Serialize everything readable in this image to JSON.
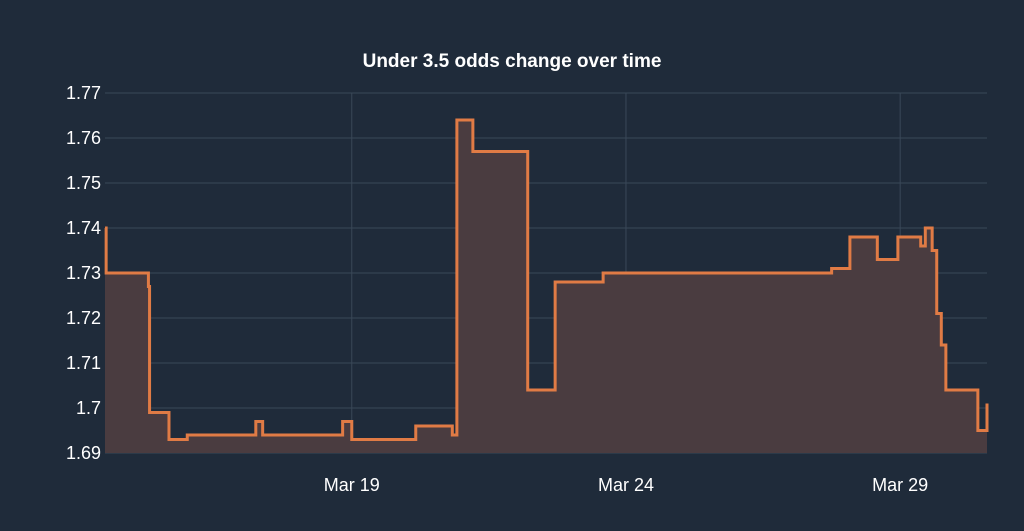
{
  "chart_data": {
    "type": "area",
    "title": "Under  3.5 odds change over time",
    "xlabel": "",
    "ylabel": "",
    "x_range": [
      "2024-03-14T12:00",
      "2024-03-30T14:00"
    ],
    "ylim": [
      1.69,
      1.77
    ],
    "yticks": [
      1.69,
      1.7,
      1.71,
      1.72,
      1.73,
      1.74,
      1.75,
      1.76,
      1.77
    ],
    "ytick_labels": [
      "1.69",
      "1.7",
      "1.71",
      "1.72",
      "1.73",
      "1.74",
      "1.75",
      "1.76",
      "1.77"
    ],
    "xticks": [
      {
        "date": "2024-03-19T00:00",
        "label": "Mar 19"
      },
      {
        "date": "2024-03-24T00:00",
        "label": "Mar 24"
      },
      {
        "date": "2024-03-29T00:00",
        "label": "Mar 29"
      }
    ],
    "grid": true,
    "step": true,
    "colors": {
      "line": "#e07b45",
      "fill": "#4a3c40",
      "background": "#1f2b3a",
      "grid": "#3a4858"
    },
    "x": [
      "2024-03-14T12:00",
      "2024-03-14T12:30",
      "2024-03-15T07:00",
      "2024-03-15T07:30",
      "2024-03-15T08:00",
      "2024-03-15T16:00",
      "2024-03-16T00:00",
      "2024-03-17T06:00",
      "2024-03-17T09:00",
      "2024-03-18T20:00",
      "2024-03-19T00:00",
      "2024-03-20T04:00",
      "2024-03-20T20:00",
      "2024-03-20T22:00",
      "2024-03-21T05:00",
      "2024-03-22T05:00",
      "2024-03-22T17:00",
      "2024-03-23T14:00",
      "2024-03-27T18:00",
      "2024-03-28T02:00",
      "2024-03-28T14:00",
      "2024-03-28T23:00",
      "2024-03-29T09:00",
      "2024-03-29T11:00",
      "2024-03-29T14:00",
      "2024-03-29T16:00",
      "2024-03-29T18:00",
      "2024-03-29T20:00",
      "2024-03-30T10:00",
      "2024-03-30T14:00"
    ],
    "values": [
      1.74,
      1.73,
      1.727,
      1.699,
      1.699,
      1.693,
      1.694,
      1.697,
      1.694,
      1.697,
      1.693,
      1.696,
      1.694,
      1.764,
      1.757,
      1.704,
      1.728,
      1.73,
      1.731,
      1.738,
      1.733,
      1.738,
      1.736,
      1.74,
      1.735,
      1.721,
      1.714,
      1.704,
      1.695,
      1.701
    ]
  }
}
